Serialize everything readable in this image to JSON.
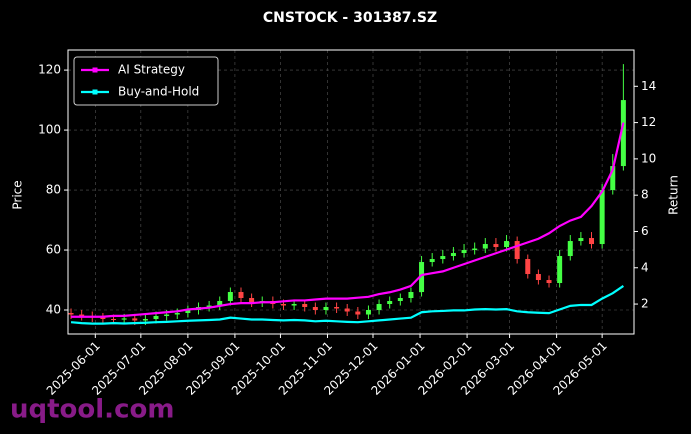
{
  "chart_data": {
    "type": "candlestick",
    "title": "CNSTOCK - 301387.SZ",
    "ylabel": "Price",
    "y2label": "Return",
    "watermark": "uqtool.com",
    "x": [
      "2025-05-16",
      "2025-05-23",
      "2025-05-30",
      "2025-06-06",
      "2025-06-13",
      "2025-06-20",
      "2025-06-27",
      "2025-07-04",
      "2025-07-11",
      "2025-07-18",
      "2025-07-25",
      "2025-08-01",
      "2025-08-08",
      "2025-08-15",
      "2025-08-22",
      "2025-08-29",
      "2025-09-05",
      "2025-09-12",
      "2025-09-19",
      "2025-09-26",
      "2025-10-03",
      "2025-10-10",
      "2025-10-17",
      "2025-10-24",
      "2025-10-31",
      "2025-11-07",
      "2025-11-14",
      "2025-11-21",
      "2025-11-28",
      "2025-12-05",
      "2025-12-12",
      "2025-12-19",
      "2025-12-26",
      "2026-01-02",
      "2026-01-09",
      "2026-01-16",
      "2026-01-23",
      "2026-01-30",
      "2026-02-06",
      "2026-02-13",
      "2026-02-20",
      "2026-02-27",
      "2026-03-06",
      "2026-03-13",
      "2026-03-20",
      "2026-03-27",
      "2026-04-03",
      "2026-04-10",
      "2026-04-17",
      "2026-04-24",
      "2026-05-01",
      "2026-05-08",
      "2026-05-15"
    ],
    "open": [
      39,
      38.5,
      38,
      37.5,
      37,
      36.8,
      37.2,
      36.5,
      37,
      38,
      38.5,
      39,
      40,
      41,
      41.5,
      43,
      46,
      44,
      42.5,
      43,
      42,
      41.5,
      42,
      41,
      40,
      41,
      40.5,
      39.5,
      38.5,
      40,
      42,
      43,
      44,
      46,
      56,
      57,
      58,
      59,
      60,
      60.5,
      62,
      61,
      63,
      57,
      52,
      50,
      49,
      58,
      63,
      64,
      62,
      80,
      88
    ],
    "high": [
      40.5,
      40,
      39.5,
      39,
      38.5,
      38.7,
      38.7,
      38.5,
      39.5,
      40,
      40.5,
      41.5,
      42.5,
      43,
      44.5,
      47.5,
      47.5,
      45.5,
      44.5,
      44.5,
      43.5,
      43.5,
      43.5,
      42.5,
      42.5,
      42.5,
      42,
      41,
      41.5,
      43.5,
      44.5,
      45.5,
      47.5,
      58,
      59,
      60,
      61,
      62,
      62.5,
      64,
      64,
      65,
      64.5,
      58.5,
      53.5,
      51.5,
      60,
      65,
      66,
      66,
      82,
      92,
      122
    ],
    "low": [
      37,
      36.5,
      36,
      35.5,
      35.3,
      35.3,
      35,
      35,
      35.5,
      36.5,
      37,
      37.5,
      38.5,
      39.5,
      40,
      41.5,
      42.5,
      41,
      41,
      40.5,
      40,
      40,
      39.5,
      38.5,
      38.5,
      39,
      38,
      37,
      37,
      38.5,
      40.5,
      41.5,
      42.5,
      44.5,
      54.5,
      55.5,
      56.5,
      57.5,
      58.5,
      59,
      59.5,
      59.5,
      55.5,
      50.5,
      48.5,
      47.5,
      47.5,
      56.5,
      61.5,
      60.5,
      60.5,
      78.5,
      86.5
    ],
    "close": [
      38.5,
      38,
      37.5,
      37,
      36.8,
      37.2,
      36.5,
      37,
      38,
      38.5,
      39,
      40,
      41,
      41.5,
      43,
      46,
      44,
      42.5,
      43,
      42,
      41.5,
      42,
      41,
      40,
      41,
      40.5,
      39.5,
      38.5,
      40,
      42,
      43,
      44,
      46,
      56,
      57,
      58,
      59,
      60,
      60.5,
      62,
      61,
      63,
      57,
      52,
      50,
      49,
      58,
      63,
      64,
      62,
      80,
      88,
      110
    ],
    "up_color": "#44ff44",
    "down_color": "#ff4444",
    "series": [
      {
        "name": "AI Strategy",
        "color": "#ff00ff",
        "axis": "y2",
        "values": [
          1.3,
          1.3,
          1.3,
          1.3,
          1.35,
          1.35,
          1.4,
          1.45,
          1.5,
          1.55,
          1.6,
          1.7,
          1.75,
          1.8,
          1.9,
          2.0,
          2.05,
          2.05,
          2.1,
          2.1,
          2.15,
          2.2,
          2.2,
          2.25,
          2.3,
          2.3,
          2.3,
          2.35,
          2.4,
          2.55,
          2.65,
          2.8,
          3.0,
          3.6,
          3.7,
          3.8,
          4.0,
          4.2,
          4.4,
          4.6,
          4.8,
          5.0,
          5.2,
          5.4,
          5.6,
          5.9,
          6.3,
          6.6,
          6.8,
          7.4,
          8.2,
          9.4,
          12.0
        ]
      },
      {
        "name": "Buy-and-Hold",
        "color": "#00ffff",
        "axis": "y2",
        "values": [
          1.0,
          0.95,
          0.92,
          0.92,
          0.95,
          0.93,
          0.95,
          0.97,
          1.0,
          1.02,
          1.05,
          1.08,
          1.1,
          1.12,
          1.15,
          1.25,
          1.2,
          1.15,
          1.15,
          1.12,
          1.1,
          1.12,
          1.1,
          1.05,
          1.08,
          1.05,
          1.02,
          1.0,
          1.05,
          1.1,
          1.15,
          1.2,
          1.25,
          1.55,
          1.6,
          1.62,
          1.65,
          1.65,
          1.7,
          1.72,
          1.7,
          1.72,
          1.6,
          1.55,
          1.52,
          1.5,
          1.7,
          1.9,
          1.95,
          1.95,
          2.3,
          2.6,
          3.0
        ]
      }
    ],
    "xlim": [
      "2025-05-14",
      "2026-05-22"
    ],
    "xticks": [
      "2025-06-01",
      "2025-07-01",
      "2025-08-01",
      "2025-09-01",
      "2025-10-01",
      "2025-11-01",
      "2025-12-01",
      "2026-01-01",
      "2026-02-01",
      "2026-03-01",
      "2026-04-01",
      "2026-05-01"
    ],
    "ylim": [
      32,
      126.7
    ],
    "yticks": [
      40,
      60,
      80,
      100,
      120
    ],
    "y2lim": [
      0.35,
      16
    ],
    "y2ticks": [
      2,
      4,
      6,
      8,
      10,
      12,
      14
    ],
    "grid": true,
    "legend": "upper left"
  }
}
